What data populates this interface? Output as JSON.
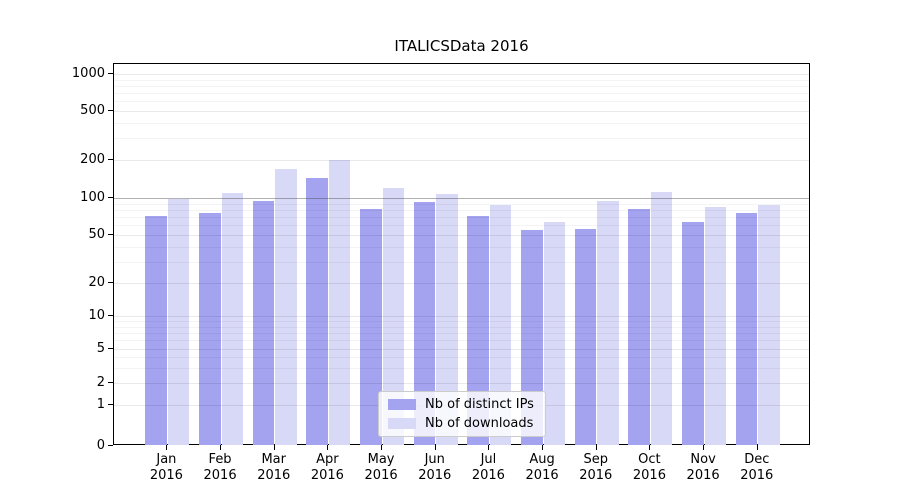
{
  "chart_data": {
    "type": "bar",
    "title": "ITALICSData 2016",
    "x": {
      "categories": [
        "Jan",
        "Feb",
        "Mar",
        "Apr",
        "May",
        "Jun",
        "Jul",
        "Aug",
        "Sep",
        "Oct",
        "Nov",
        "Dec"
      ],
      "year_label": "2016"
    },
    "y": {
      "scale": "symlog",
      "ticks": [
        0,
        1,
        2,
        5,
        10,
        20,
        50,
        100,
        200,
        500,
        1000
      ],
      "minor_ticks": [
        3,
        4,
        6,
        7,
        8,
        9,
        30,
        40,
        60,
        70,
        80,
        90,
        300,
        400,
        600,
        700,
        800,
        900
      ],
      "ylim": [
        0,
        1200
      ],
      "highlight_gridline": 100
    },
    "series": [
      {
        "name": "Nb of distinct IPs",
        "color": "#a3a3f0",
        "values": [
          71,
          76,
          95,
          143,
          82,
          93,
          71,
          55,
          56,
          81,
          64,
          76
        ]
      },
      {
        "name": "Nb of downloads",
        "color": "#d8d8f7",
        "values": [
          98,
          110,
          170,
          200,
          119,
          107,
          87,
          64,
          94,
          112,
          85,
          87
        ]
      }
    ],
    "grid": true,
    "legend_position": "lower center"
  }
}
